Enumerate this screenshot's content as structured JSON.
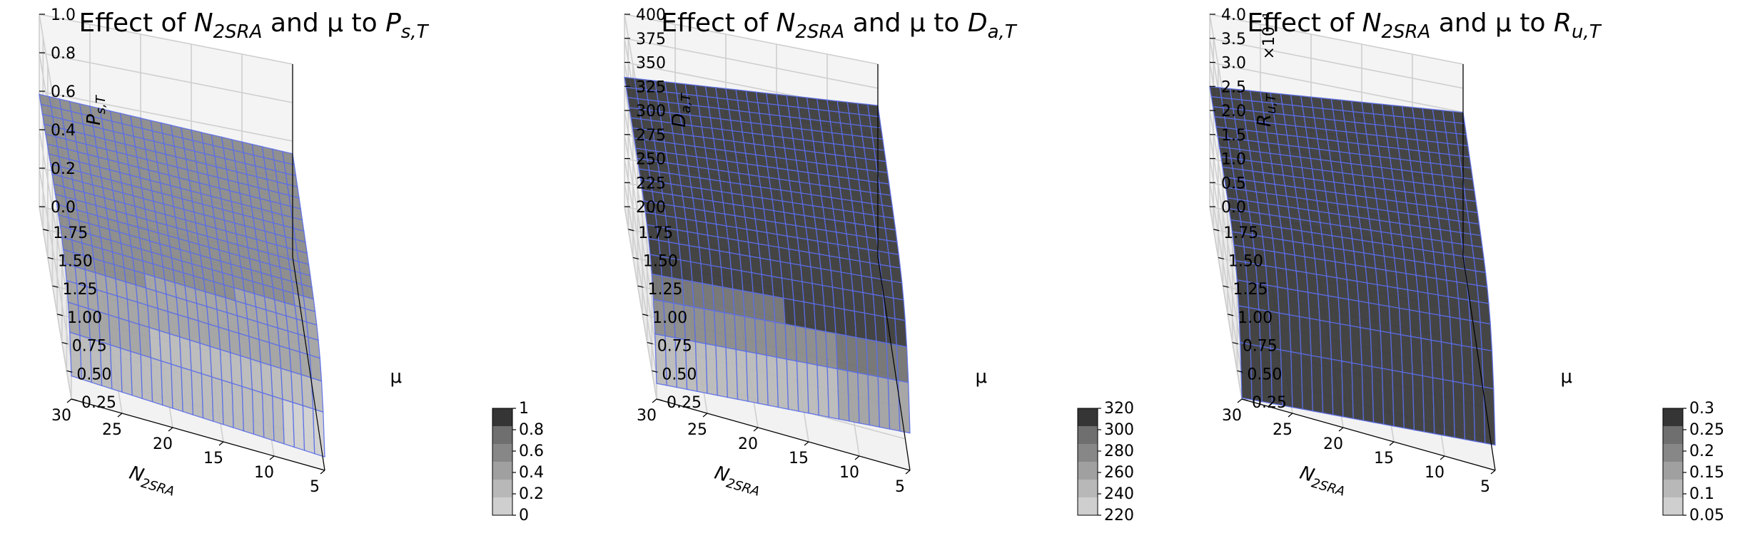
{
  "chart_data": [
    {
      "type": "surface3d",
      "title": "Effect of N2SRA and μ to Ps,T",
      "title_parts": {
        "prefix": "Effect of ",
        "v1": "N",
        "v1_sub": "2SRA",
        "mid": " and μ to ",
        "v2": "P",
        "v2_sub": "s,T"
      },
      "xlabel": {
        "main": "N",
        "sub": "2SRA"
      },
      "ylabel": {
        "main": "μ",
        "sub": ""
      },
      "zlabel": {
        "main": "P",
        "sub": "s,T"
      },
      "x_ticks": [
        "30",
        "25",
        "20",
        "15",
        "10",
        "5"
      ],
      "y_ticks": [
        "0.25",
        "0.50",
        "0.75",
        "1.00",
        "1.25",
        "1.50",
        "1.75"
      ],
      "z_ticks": [
        "0.0",
        "0.2",
        "0.4",
        "0.6",
        "0.8",
        "1.0"
      ],
      "z_multiplier": "",
      "xlim": [
        5,
        30
      ],
      "ylim": [
        0.25,
        1.95
      ],
      "zlim": [
        0.0,
        1.0
      ],
      "colorbar": {
        "ticks": [
          "0",
          "0.2",
          "0.4",
          "0.6",
          "0.8",
          "1"
        ],
        "range": [
          0,
          1
        ]
      },
      "surface_model": {
        "a": 0.11,
        "b": 0.43,
        "k": 3.4,
        "mu_scale": 0.55,
        "n_coef": 0.002,
        "mu_coef": 0.02
      },
      "grid": true
    },
    {
      "type": "surface3d",
      "title": "Effect of N2SRA and μ to Da,T",
      "title_parts": {
        "prefix": "Effect of ",
        "v1": "N",
        "v1_sub": "2SRA",
        "mid": " and μ to ",
        "v2": "D",
        "v2_sub": "a,T"
      },
      "xlabel": {
        "main": "N",
        "sub": "2SRA"
      },
      "ylabel": {
        "main": "μ",
        "sub": ""
      },
      "zlabel": {
        "main": "D",
        "sub": "a,T"
      },
      "x_ticks": [
        "30",
        "25",
        "20",
        "15",
        "10",
        "5"
      ],
      "y_ticks": [
        "0.25",
        "0.50",
        "0.75",
        "1.00",
        "1.25",
        "1.50",
        "1.75"
      ],
      "z_ticks": [
        "200",
        "225",
        "250",
        "275",
        "300",
        "325",
        "350",
        "375",
        "400"
      ],
      "z_multiplier": "",
      "xlim": [
        5,
        30
      ],
      "ylim": [
        0.25,
        1.95
      ],
      "zlim": [
        200,
        400
      ],
      "colorbar": {
        "ticks": [
          "220",
          "240",
          "260",
          "280",
          "300",
          "320"
        ],
        "range": [
          220,
          320
        ]
      },
      "surface_model": {
        "a": 232,
        "b": 108,
        "k": 2.8,
        "mu_scale": 0.5,
        "n_coef": -0.9,
        "mu_coef": 6
      },
      "grid": true
    },
    {
      "type": "surface3d",
      "title": "Effect of N2SRA and μ to Ru,T",
      "title_parts": {
        "prefix": "Effect of ",
        "v1": "N",
        "v1_sub": "2SRA",
        "mid": " and μ to ",
        "v2": "R",
        "v2_sub": "u,T"
      },
      "xlabel": {
        "main": "N",
        "sub": "2SRA"
      },
      "ylabel": {
        "main": "μ",
        "sub": ""
      },
      "zlabel": {
        "main": "R",
        "sub": "u,T"
      },
      "x_ticks": [
        "30",
        "25",
        "20",
        "15",
        "10",
        "5"
      ],
      "y_ticks": [
        "0.25",
        "0.50",
        "0.75",
        "1.00",
        "1.25",
        "1.50",
        "1.75"
      ],
      "z_ticks": [
        "0.0",
        "0.5",
        "1.0",
        "1.5",
        "2.0",
        "2.5",
        "3.0",
        "3.5",
        "4.0"
      ],
      "z_multiplier": "×10⁻¹",
      "xlim": [
        5,
        30
      ],
      "ylim": [
        0.25,
        1.95
      ],
      "zlim": [
        0.0,
        4.0
      ],
      "colorbar": {
        "ticks": [
          "0.05",
          "0.1",
          "0.15",
          "0.2",
          "0.25",
          "0.3"
        ],
        "range": [
          0.05,
          0.3
        ]
      },
      "surface_model": {
        "a": 0.35,
        "b": 2.3,
        "k": 3.4,
        "mu_scale": 0.55,
        "n_coef": -0.02,
        "mu_coef": 0.1
      },
      "grid": true
    }
  ],
  "colors": {
    "surface_line": "#5b6ee8",
    "pane": "#f2f2f2",
    "grid": "#cfcfcf",
    "colormap": [
      "#cfcfcf",
      "#b8b8b8",
      "#a0a0a0",
      "#878787",
      "#6f6f6f",
      "#353535"
    ]
  }
}
